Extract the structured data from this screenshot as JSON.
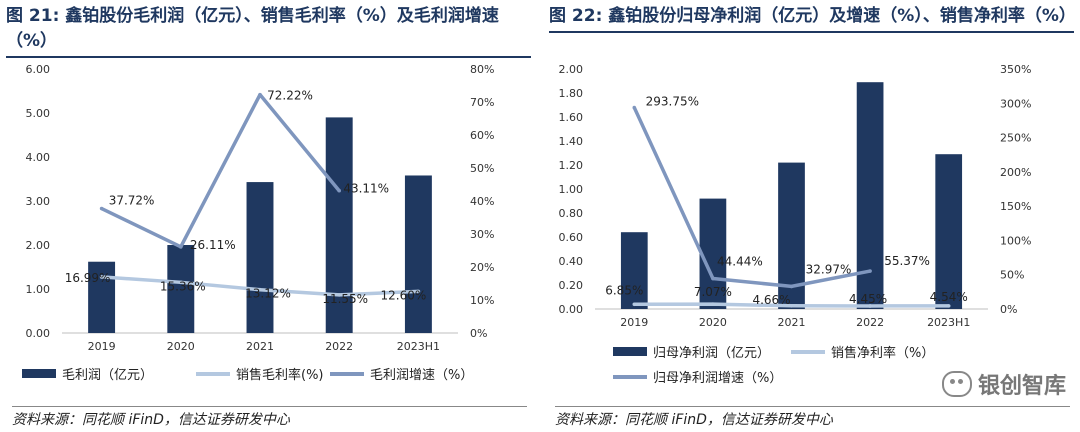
{
  "charts": [
    {
      "title": "图 21: 鑫铂股份毛利润（亿元）、销售毛利率（%）及毛利润增速（%）",
      "source": "资料来源：同花顺 iFinD，信达证券研发中心",
      "chart_data": {
        "type": "bar",
        "categories": [
          "2019",
          "2020",
          "2021",
          "2022",
          "2023H1"
        ],
        "series": [
          {
            "name": "毛利润（亿元）",
            "type": "bar",
            "axis": "left",
            "values": [
              1.62,
              2.0,
              3.43,
              4.9,
              3.58
            ],
            "color": "#1f3860"
          },
          {
            "name": "销售毛利率(%)",
            "type": "line",
            "axis": "right",
            "values": [
              16.99,
              15.36,
              13.12,
              11.55,
              12.6
            ],
            "labels": [
              "16.99%",
              "15.36%",
              "13.12%",
              "11.55%",
              "12.60%"
            ],
            "color": "#b4c8e0"
          },
          {
            "name": "毛利润增速（%）",
            "type": "line",
            "axis": "right",
            "values": [
              37.72,
              26.11,
              72.22,
              43.11,
              null
            ],
            "labels": [
              "37.72%",
              "26.11%",
              "72.22%",
              "43.11%",
              ""
            ],
            "color": "#7f96be"
          }
        ],
        "y_left": {
          "min": 0,
          "max": 6,
          "step": 1,
          "ticks": [
            "0.00",
            "1.00",
            "2.00",
            "3.00",
            "4.00",
            "5.00",
            "6.00"
          ]
        },
        "y_right": {
          "min": 0,
          "max": 80,
          "step": 10,
          "ticks": [
            "0%",
            "10%",
            "20%",
            "30%",
            "40%",
            "50%",
            "60%",
            "70%",
            "80%"
          ]
        },
        "legend": [
          "毛利润（亿元）",
          "销售毛利率(%)",
          "毛利润增速（%）"
        ]
      }
    },
    {
      "title": "图 22: 鑫铂股份归母净利润（亿元）及增速（%）、销售净利率（%）",
      "source": "资料来源：同花顺 iFinD，信达证券研发中心",
      "chart_data": {
        "type": "bar",
        "categories": [
          "2019",
          "2020",
          "2021",
          "2022",
          "2023H1"
        ],
        "series": [
          {
            "name": "归母净利润（亿元）",
            "type": "bar",
            "axis": "left",
            "values": [
              0.64,
              0.92,
              1.22,
              1.89,
              1.29
            ],
            "color": "#1f3860"
          },
          {
            "name": "销售净利率（%）",
            "type": "line",
            "axis": "right",
            "values": [
              6.85,
              7.07,
              4.66,
              4.45,
              4.54
            ],
            "labels": [
              "6.85%",
              "7.07%",
              "4.66%",
              "4.45%",
              "4.54%"
            ],
            "color": "#b4c8e0"
          },
          {
            "name": "归母净利润增速（%）",
            "type": "line",
            "axis": "right",
            "values": [
              293.75,
              44.44,
              32.97,
              55.37,
              null
            ],
            "labels": [
              "293.75%",
              "44.44%",
              "32.97%",
              "55.37%",
              ""
            ],
            "color": "#7f96be"
          }
        ],
        "y_left": {
          "min": 0,
          "max": 2.0,
          "step": 0.2,
          "ticks": [
            "0.00",
            "0.20",
            "0.40",
            "0.60",
            "0.80",
            "1.00",
            "1.20",
            "1.40",
            "1.60",
            "1.80",
            "2.00"
          ]
        },
        "y_right": {
          "min": 0,
          "max": 350,
          "step": 50,
          "ticks": [
            "0%",
            "50%",
            "100%",
            "150%",
            "200%",
            "250%",
            "300%",
            "350%"
          ]
        },
        "legend": [
          "归母净利润（亿元）",
          "销售净利率（%）",
          "归母净利润增速（%）"
        ]
      }
    }
  ],
  "watermark": {
    "text": "银创智库",
    "icon": "wechat-icon"
  }
}
